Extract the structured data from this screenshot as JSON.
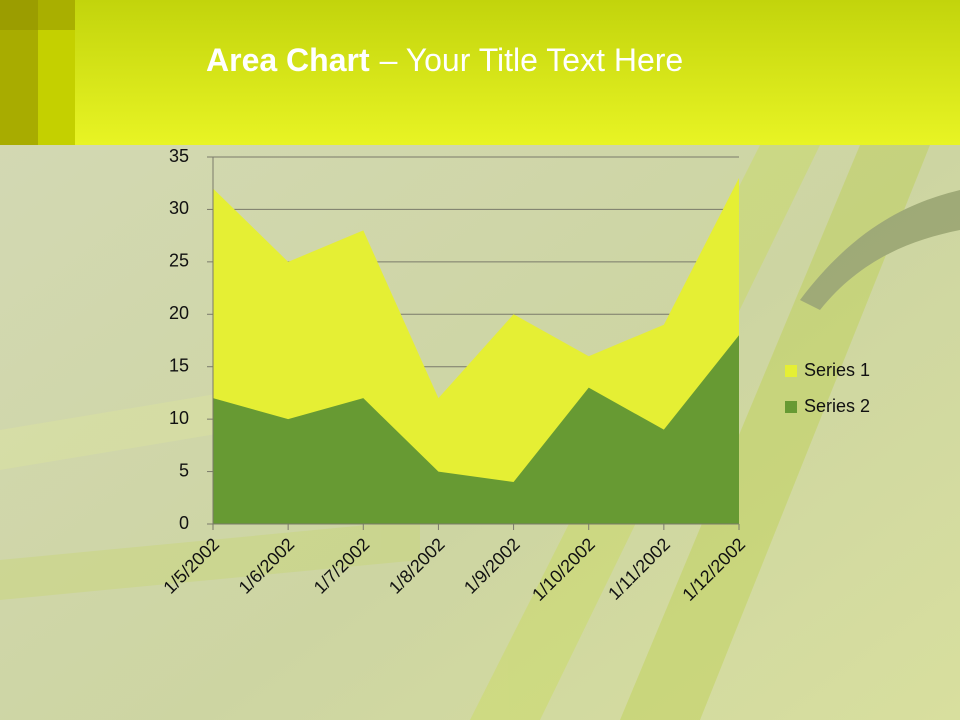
{
  "header": {
    "title_bold": "Area Chart",
    "title_rest": "– Your Title Text Here"
  },
  "chart_data": {
    "type": "area",
    "categories": [
      "1/5/2002",
      "1/6/2002",
      "1/7/2002",
      "1/8/2002",
      "1/9/2002",
      "1/10/2002",
      "1/11/2002",
      "1/12/2002"
    ],
    "series": [
      {
        "name": "Series 1",
        "color": "#e5ef34",
        "values": [
          32,
          25,
          28,
          12,
          20,
          16,
          19,
          33
        ]
      },
      {
        "name": "Series 2",
        "color": "#679a33",
        "values": [
          12,
          10,
          12,
          5,
          4,
          13,
          9,
          18
        ]
      }
    ],
    "ylim": [
      0,
      35
    ],
    "yticks": [
      0,
      5,
      10,
      15,
      20,
      25,
      30,
      35
    ],
    "grid": true,
    "legend": "right"
  }
}
